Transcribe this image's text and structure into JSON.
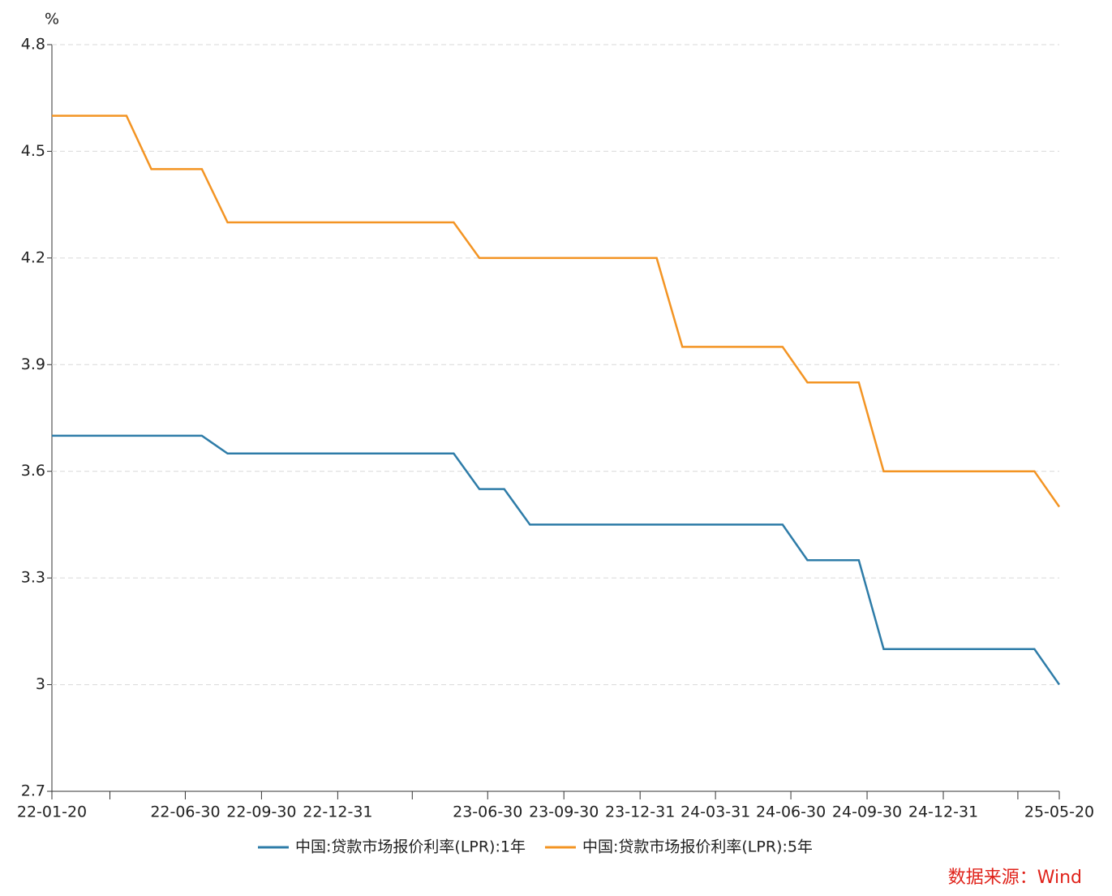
{
  "chart_data": {
    "type": "line",
    "y_label": "%",
    "x": [
      "22-01-20",
      "22-02-20",
      "22-03-20",
      "22-04-20",
      "22-05-20",
      "22-06-20",
      "22-07-20",
      "22-08-20",
      "22-09-20",
      "22-10-20",
      "22-11-20",
      "22-12-20",
      "23-01-20",
      "23-02-20",
      "23-03-20",
      "23-04-20",
      "23-05-20",
      "23-06-20",
      "23-07-20",
      "23-08-20",
      "23-09-20",
      "23-10-20",
      "23-11-20",
      "23-12-20",
      "24-01-20",
      "24-02-20",
      "24-03-20",
      "24-04-20",
      "24-05-20",
      "24-06-20",
      "24-07-20",
      "24-08-20",
      "24-09-20",
      "24-10-20",
      "24-11-20",
      "24-12-20",
      "25-01-20",
      "25-02-20",
      "25-03-20",
      "25-04-20",
      "25-05-20"
    ],
    "series": [
      {
        "name": "中国:贷款市场报价利率(LPR):1年",
        "color": "#2e7ca8",
        "values": [
          3.7,
          3.7,
          3.7,
          3.7,
          3.7,
          3.7,
          3.7,
          3.65,
          3.65,
          3.65,
          3.65,
          3.65,
          3.65,
          3.65,
          3.65,
          3.65,
          3.65,
          3.55,
          3.55,
          3.45,
          3.45,
          3.45,
          3.45,
          3.45,
          3.45,
          3.45,
          3.45,
          3.45,
          3.45,
          3.45,
          3.35,
          3.35,
          3.35,
          3.1,
          3.1,
          3.1,
          3.1,
          3.1,
          3.1,
          3.1,
          3.0
        ]
      },
      {
        "name": "中国:贷款市场报价利率(LPR):5年",
        "color": "#f39423",
        "values": [
          4.6,
          4.6,
          4.6,
          4.6,
          4.45,
          4.45,
          4.45,
          4.3,
          4.3,
          4.3,
          4.3,
          4.3,
          4.3,
          4.3,
          4.3,
          4.3,
          4.3,
          4.2,
          4.2,
          4.2,
          4.2,
          4.2,
          4.2,
          4.2,
          4.2,
          3.95,
          3.95,
          3.95,
          3.95,
          3.95,
          3.85,
          3.85,
          3.85,
          3.6,
          3.6,
          3.6,
          3.6,
          3.6,
          3.6,
          3.6,
          3.5
        ]
      }
    ],
    "xlim": [
      "22-01-20",
      "25-05-20"
    ],
    "xticks": [
      "22-01-20",
      {
        "value": "22-03-31",
        "label": null
      },
      "22-06-30",
      "22-09-30",
      "22-12-31",
      {
        "value": "23-03-31",
        "label": null
      },
      "23-06-30",
      "23-09-30",
      "23-12-31",
      "24-03-31",
      "24-06-30",
      "24-09-30",
      "24-12-31",
      {
        "value": "25-03-31",
        "label": null
      },
      "25-05-20"
    ],
    "ylim": [
      2.7,
      4.8
    ],
    "yticks": [
      2.7,
      3,
      3.3,
      3.6,
      3.9,
      4.2,
      4.5,
      4.8
    ],
    "grid": true,
    "legend": "bottom",
    "source": "数据来源：Wind"
  }
}
